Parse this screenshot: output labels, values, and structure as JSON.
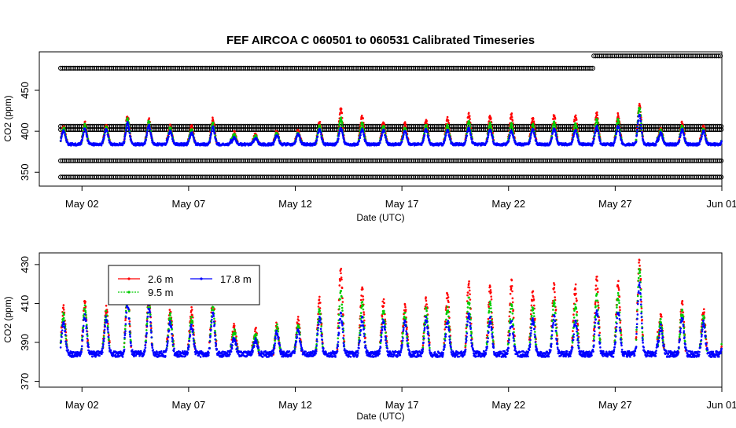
{
  "chart_data": [
    {
      "type": "scatter",
      "title": "FEF   AIRCOA  C    060501  to  060531   Calibrated Timeseries",
      "xlabel": "Date (UTC)",
      "ylabel": "CO2 (ppm)",
      "x_range": [
        "2006-04-30",
        "2006-06-01"
      ],
      "ylim": [
        333,
        497
      ],
      "x_ticks": [
        "May 02",
        "May 07",
        "May 12",
        "May 17",
        "May 22",
        "May 27",
        "Jun 01"
      ],
      "y_ticks": [
        350,
        400,
        450
      ],
      "grid": false,
      "reference_series": [
        {
          "color": "#000000",
          "value": 344,
          "from": "2006-05-01",
          "to": "2006-06-01"
        },
        {
          "color": "#000000",
          "value": 364,
          "from": "2006-05-01",
          "to": "2006-06-01"
        },
        {
          "color": "#000000",
          "value": 402,
          "from": "2006-05-01",
          "to": "2006-06-01"
        },
        {
          "color": "#000000",
          "value": 406,
          "from": "2006-05-01",
          "to": "2006-06-01"
        },
        {
          "color": "#000000",
          "value": 477,
          "from": "2006-05-01",
          "to": "2006-05-26"
        },
        {
          "color": "#000000",
          "value": 492,
          "from": "2006-05-26",
          "to": "2006-06-01"
        }
      ],
      "series": [
        {
          "name": "2.6 m",
          "color": "#ff0000"
        },
        {
          "name": "9.5 m",
          "color": "#00cc00"
        },
        {
          "name": "17.8 m",
          "color": "#0000ff"
        }
      ]
    },
    {
      "type": "scatter",
      "xlabel": "Date (UTC)",
      "ylabel": "CO2 (ppm)",
      "x_range": [
        "2006-04-30",
        "2006-06-01"
      ],
      "ylim": [
        367,
        436
      ],
      "x_ticks": [
        "May 02",
        "May 07",
        "May 12",
        "May 17",
        "May 22",
        "May 27",
        "Jun 01"
      ],
      "y_ticks": [
        370,
        390,
        410,
        430
      ],
      "grid": false,
      "legend": {
        "placement": "top-left",
        "entries": [
          {
            "name": "2.6 m",
            "color": "#ff0000"
          },
          {
            "name": "17.8 m",
            "color": "#0000ff"
          },
          {
            "name": "9.5 m",
            "color": "#00cc00"
          }
        ]
      },
      "series": [
        {
          "name": "2.6 m",
          "color": "#ff0000"
        },
        {
          "name": "9.5 m",
          "color": "#00cc00"
        },
        {
          "name": "17.8 m",
          "color": "#0000ff"
        }
      ],
      "daily_peaks": [
        {
          "date": "2006-05-01",
          "blue": 400,
          "green": 404,
          "red": 407
        },
        {
          "date": "2006-05-02",
          "blue": 403,
          "green": 408,
          "red": 410
        },
        {
          "date": "2006-05-03",
          "blue": 402,
          "green": 405,
          "red": 407
        },
        {
          "date": "2006-05-04",
          "blue": 410,
          "green": 415,
          "red": 419
        },
        {
          "date": "2006-05-05",
          "blue": 408,
          "green": 412,
          "red": 414
        },
        {
          "date": "2006-05-06",
          "blue": 400,
          "green": 404,
          "red": 407
        },
        {
          "date": "2006-05-07",
          "blue": 398,
          "green": 402,
          "red": 406
        },
        {
          "date": "2006-05-08",
          "blue": 405,
          "green": 410,
          "red": 415
        },
        {
          "date": "2006-05-09",
          "blue": 392,
          "green": 396,
          "red": 398
        },
        {
          "date": "2006-05-10",
          "blue": 391,
          "green": 394,
          "red": 396
        },
        {
          "date": "2006-05-11",
          "blue": 395,
          "green": 398,
          "red": 399
        },
        {
          "date": "2006-05-12",
          "blue": 396,
          "green": 399,
          "red": 401
        },
        {
          "date": "2006-05-13",
          "blue": 402,
          "green": 407,
          "red": 411
        },
        {
          "date": "2006-05-14",
          "blue": 404,
          "green": 416,
          "red": 427
        },
        {
          "date": "2006-05-15",
          "blue": 402,
          "green": 410,
          "red": 418
        },
        {
          "date": "2006-05-16",
          "blue": 401,
          "green": 406,
          "red": 411
        },
        {
          "date": "2006-05-17",
          "blue": 400,
          "green": 404,
          "red": 409
        },
        {
          "date": "2006-05-18",
          "blue": 402,
          "green": 407,
          "red": 412
        },
        {
          "date": "2006-05-19",
          "blue": 401,
          "green": 407,
          "red": 415
        },
        {
          "date": "2006-05-20",
          "blue": 404,
          "green": 412,
          "red": 421
        },
        {
          "date": "2006-05-21",
          "blue": 402,
          "green": 410,
          "red": 418
        },
        {
          "date": "2006-05-22",
          "blue": 400,
          "green": 409,
          "red": 420
        },
        {
          "date": "2006-05-23",
          "blue": 402,
          "green": 408,
          "red": 416
        },
        {
          "date": "2006-05-24",
          "blue": 403,
          "green": 411,
          "red": 419
        },
        {
          "date": "2006-05-25",
          "blue": 401,
          "green": 409,
          "red": 418
        },
        {
          "date": "2006-05-26",
          "blue": 406,
          "green": 414,
          "red": 422
        },
        {
          "date": "2006-05-27",
          "blue": 406,
          "green": 414,
          "red": 420
        },
        {
          "date": "2006-05-28",
          "blue": 420,
          "green": 428,
          "red": 432
        },
        {
          "date": "2006-05-29",
          "blue": 398,
          "green": 401,
          "red": 403
        },
        {
          "date": "2006-05-30",
          "blue": 402,
          "green": 406,
          "red": 410
        },
        {
          "date": "2006-05-31",
          "blue": 400,
          "green": 403,
          "red": 406
        }
      ],
      "baseline": 384
    }
  ]
}
